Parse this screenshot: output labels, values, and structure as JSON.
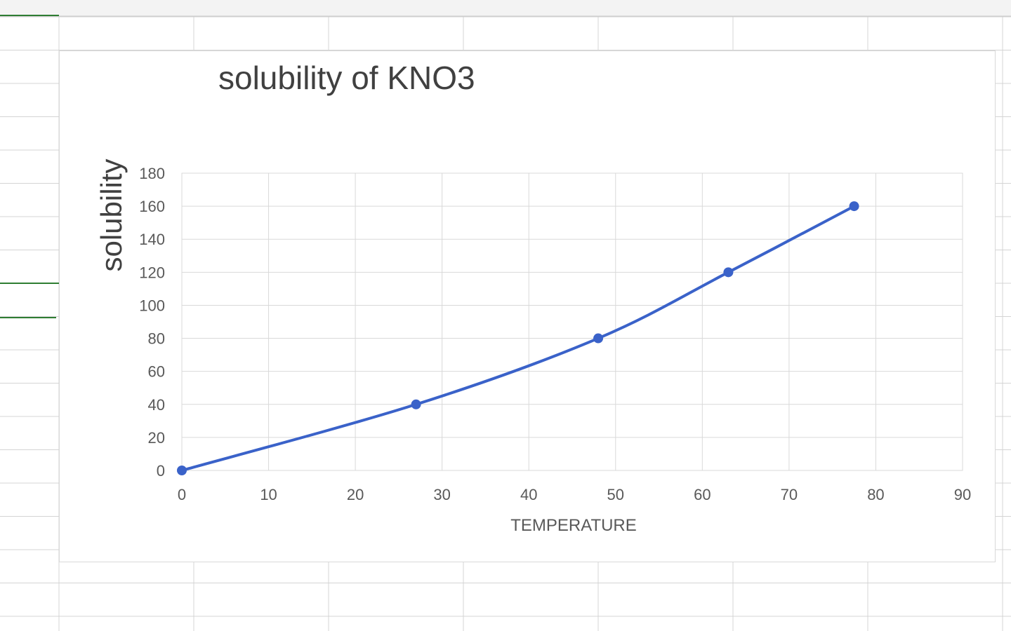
{
  "chart_data": {
    "type": "line",
    "title": "solubility of KNO3",
    "xlabel": "TEMPERATURE",
    "ylabel": "solubility",
    "xlim": [
      0,
      90
    ],
    "ylim": [
      0,
      180
    ],
    "x_ticks": [
      "0",
      "10",
      "20",
      "30",
      "40",
      "50",
      "60",
      "70",
      "80",
      "90"
    ],
    "y_ticks": [
      "0",
      "20",
      "40",
      "60",
      "80",
      "100",
      "120",
      "140",
      "160",
      "180"
    ],
    "grid": true,
    "legend": "none",
    "series": [
      {
        "color": "#3a62c9",
        "points": [
          {
            "x": 0,
            "y": 0
          },
          {
            "x": 27,
            "y": 40
          },
          {
            "x": 48,
            "y": 80
          },
          {
            "x": 63,
            "y": 120
          },
          {
            "x": 77.5,
            "y": 160
          }
        ]
      }
    ]
  }
}
